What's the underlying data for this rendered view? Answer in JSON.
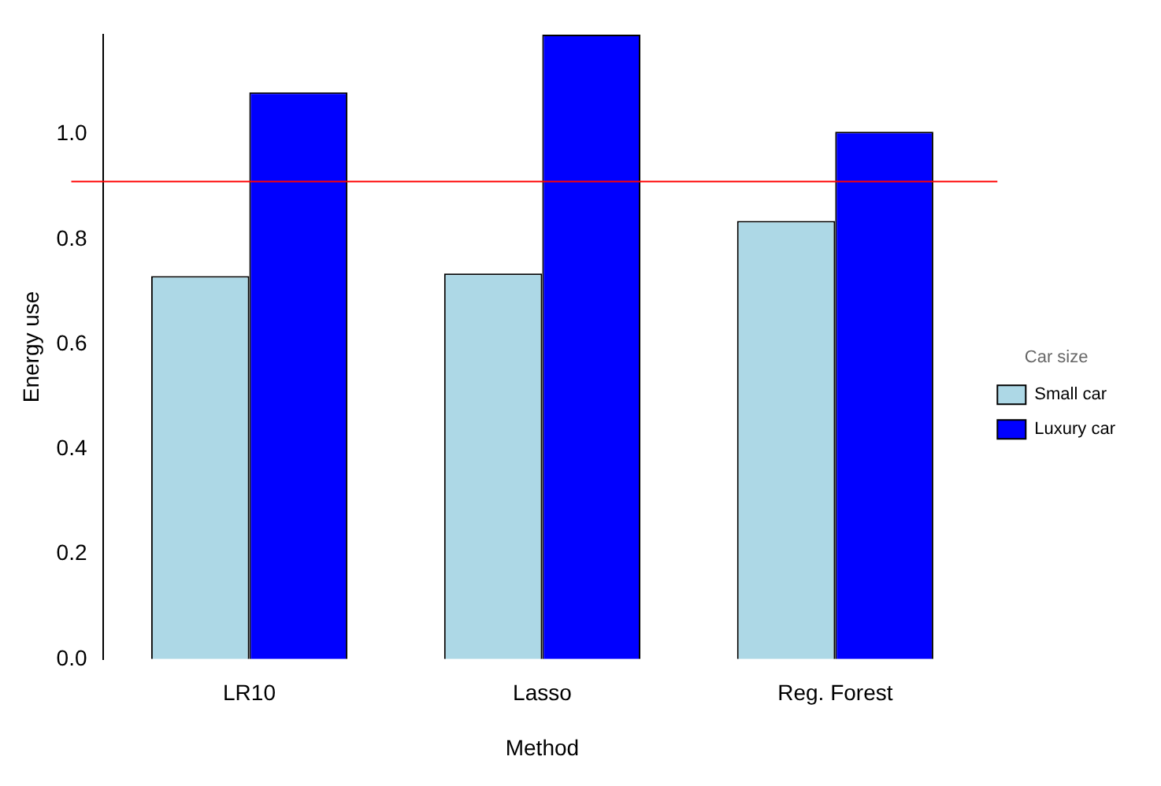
{
  "chart_data": {
    "type": "bar",
    "xlabel": "Method",
    "ylabel": "Energy use",
    "legend_title": "Car size",
    "categories": [
      "LR10",
      "Lasso",
      "Reg. Forest"
    ],
    "series": [
      {
        "name": "Small car",
        "color": "#add8e6",
        "values": [
          0.73,
          0.735,
          0.835
        ]
      },
      {
        "name": "Luxury car",
        "color": "#0000ff",
        "values": [
          1.08,
          1.19,
          1.005
        ]
      }
    ],
    "ylim": [
      0,
      1.19
    ],
    "yticks": [
      {
        "value": 0,
        "label": "0.0"
      },
      {
        "value": 0.2,
        "label": "0.2"
      },
      {
        "value": 0.4,
        "label": "0.4"
      },
      {
        "value": 0.6,
        "label": "0.6"
      },
      {
        "value": 0.8,
        "label": "0.8"
      },
      {
        "value": 1,
        "label": "1.0"
      }
    ],
    "ref_lines": [
      {
        "axis": "y",
        "value": 0.91,
        "color": "#ff0000"
      }
    ],
    "grid": false,
    "legend": "right"
  }
}
